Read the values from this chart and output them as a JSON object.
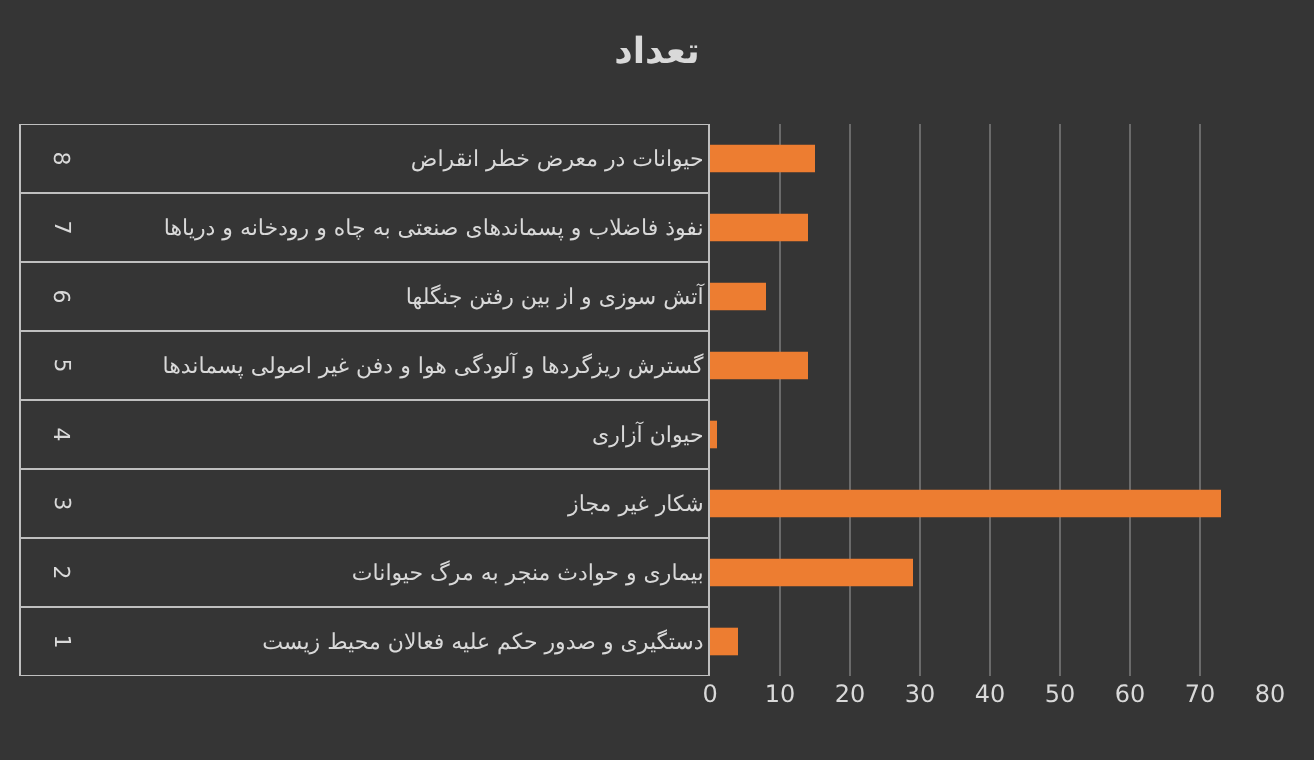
{
  "chart_data": {
    "type": "bar",
    "orientation": "horizontal",
    "title": "تعداد",
    "categories": [
      "حیوانات در معرض خطر انقراض",
      "نفوذ فاضلاب و پسماندهای صنعتی به چاه و رودخانه و دریاها",
      "آتش سوزی و از بین رفتن جنگلها",
      "گسترش ریزگردها و آلودگی هوا و دفن غیر اصولی پسماندها",
      "حیوان آزاری",
      "شکار غیر مجاز",
      "بیماری و حوادث منجر به مرگ حیوانات",
      "دستگیری و صدور حکم علیه فعالان محیط زیست"
    ],
    "values": [
      15,
      14,
      8,
      14,
      1,
      73,
      29,
      4
    ],
    "color": "#ed7d31",
    "annotations": [
      "8",
      "7",
      "6",
      "5",
      "4",
      "3",
      "2",
      "1"
    ],
    "xlim": [
      0,
      80
    ],
    "xticks": [
      0,
      10,
      20,
      30,
      40,
      50,
      60,
      70,
      80
    ],
    "grid": "x"
  }
}
